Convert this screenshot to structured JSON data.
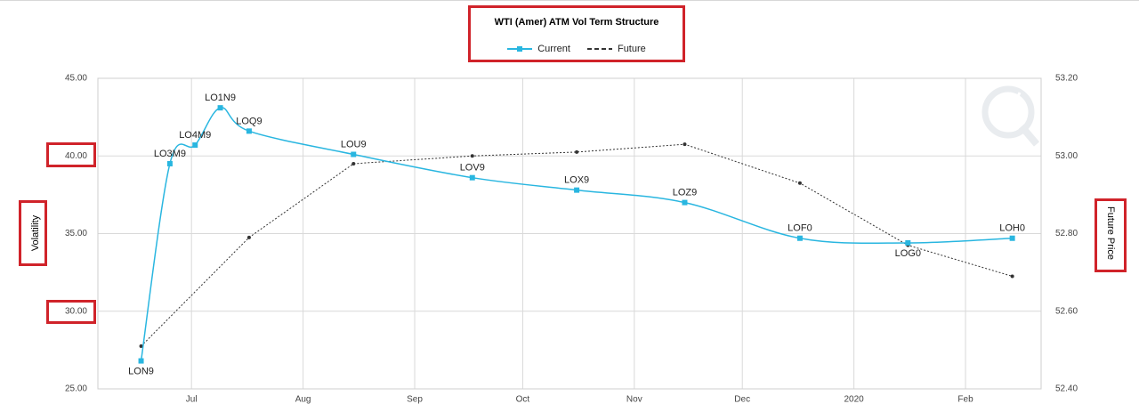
{
  "chart_data": {
    "type": "line",
    "title": "WTI (Amer) ATM Vol Term Structure",
    "y_left_label": "Volatility",
    "y_right_label": "Future Price",
    "y_left_ticks": [
      "25.00",
      "30.00",
      "35.00",
      "40.00",
      "45.00"
    ],
    "y_left_range": [
      25,
      45
    ],
    "y_right_ticks": [
      "52.40",
      "52.60",
      "52.80",
      "53.00",
      "53.20"
    ],
    "y_right_range": [
      52.4,
      53.2
    ],
    "x_ticks": [
      "Jul",
      "Aug",
      "Sep",
      "Oct",
      "Nov",
      "Dec",
      "2020",
      "Feb"
    ],
    "grid": true,
    "legend_position": "top-center",
    "series": [
      {
        "name": "Current",
        "axis": "left",
        "color": "#29b6e0",
        "marker": "square",
        "smooth": true,
        "points": [
          {
            "label": "LON9",
            "x": "2019-06-17",
            "y": 26.8
          },
          {
            "label": "LO3M9",
            "x": "2019-06-25",
            "y": 39.5
          },
          {
            "label": "LO4M9",
            "x": "2019-07-02",
            "y": 40.7
          },
          {
            "label": "LO1N9",
            "x": "2019-07-09",
            "y": 43.1
          },
          {
            "label": "LOQ9",
            "x": "2019-07-17",
            "y": 41.6
          },
          {
            "label": "LOU9",
            "x": "2019-08-15",
            "y": 40.1
          },
          {
            "label": "LOV9",
            "x": "2019-09-17",
            "y": 38.6
          },
          {
            "label": "LOX9",
            "x": "2019-10-16",
            "y": 37.8
          },
          {
            "label": "LOZ9",
            "x": "2019-11-15",
            "y": 37.0
          },
          {
            "label": "LOF0",
            "x": "2019-12-17",
            "y": 34.7
          },
          {
            "label": "LOG0",
            "x": "2020-01-16",
            "y": 34.4
          },
          {
            "label": "LOH0",
            "x": "2020-02-14",
            "y": 34.7
          }
        ]
      },
      {
        "name": "Future",
        "axis": "right",
        "color": "#333333",
        "marker": "dot",
        "dashed": true,
        "points": [
          {
            "x": "2019-06-17",
            "y": 52.51
          },
          {
            "x": "2019-07-17",
            "y": 52.79
          },
          {
            "x": "2019-08-15",
            "y": 52.98
          },
          {
            "x": "2019-09-17",
            "y": 53.0
          },
          {
            "x": "2019-10-16",
            "y": 53.01
          },
          {
            "x": "2019-11-15",
            "y": 53.03
          },
          {
            "x": "2019-12-17",
            "y": 52.93
          },
          {
            "x": "2020-01-16",
            "y": 52.77
          },
          {
            "x": "2020-02-14",
            "y": 52.69
          }
        ]
      }
    ]
  },
  "legend": {
    "current_label": "Current",
    "future_label": "Future"
  }
}
